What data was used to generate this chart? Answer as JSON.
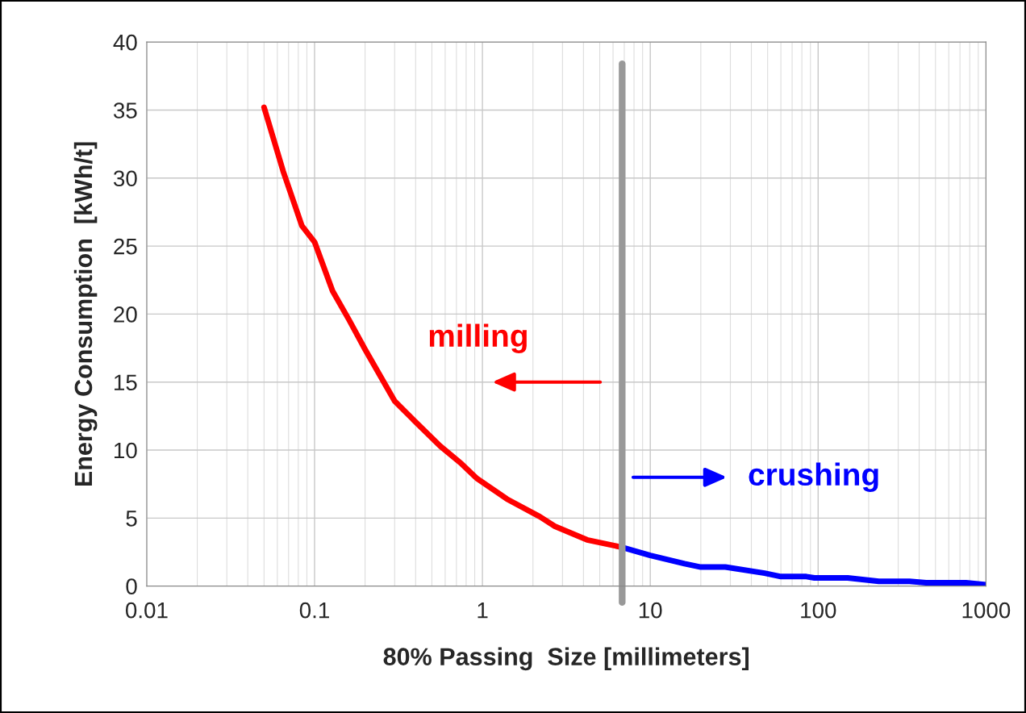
{
  "chart_data": {
    "type": "line",
    "xlabel": "80% Passing  Size [millimeters]",
    "ylabel": "Energy Consumption  [kWh/t]",
    "log": "x",
    "xlim": [
      0.01,
      1000
    ],
    "xticks": [
      0.01,
      0.1,
      1,
      10,
      100,
      1000
    ],
    "ylim": [
      0,
      40
    ],
    "yticks": [
      0,
      5,
      10,
      15,
      20,
      25,
      30,
      35,
      40
    ],
    "grid": true,
    "legend": false,
    "marker": "none",
    "line_style": "solid",
    "series": [
      {
        "color": "#ff0000",
        "x": [
          0.05,
          0.065,
          0.084,
          0.1,
          0.128,
          0.16,
          0.2,
          0.3,
          0.39,
          0.56,
          0.75,
          0.93,
          1.4,
          2.2,
          2.7,
          4.2,
          6.8
        ],
        "values": [
          35.2,
          30.5,
          26.5,
          25.3,
          21.7,
          19.6,
          17.4,
          13.6,
          12.2,
          10.3,
          9.0,
          7.9,
          6.4,
          5.1,
          4.4,
          3.4,
          2.85
        ]
      },
      {
        "color": "#0000ff",
        "x": [
          6.8,
          10,
          16,
          20,
          28,
          48,
          60,
          85,
          95,
          150,
          230,
          350,
          440,
          760,
          1000
        ],
        "values": [
          2.85,
          2.25,
          1.65,
          1.4,
          1.4,
          0.95,
          0.7,
          0.7,
          0.6,
          0.6,
          0.35,
          0.35,
          0.25,
          0.25,
          0.1
        ]
      }
    ],
    "ref_lines": [
      {
        "axis": "x",
        "value": 6.8,
        "color": "#999999"
      }
    ],
    "annotations": [
      "milling",
      "crushing"
    ]
  }
}
